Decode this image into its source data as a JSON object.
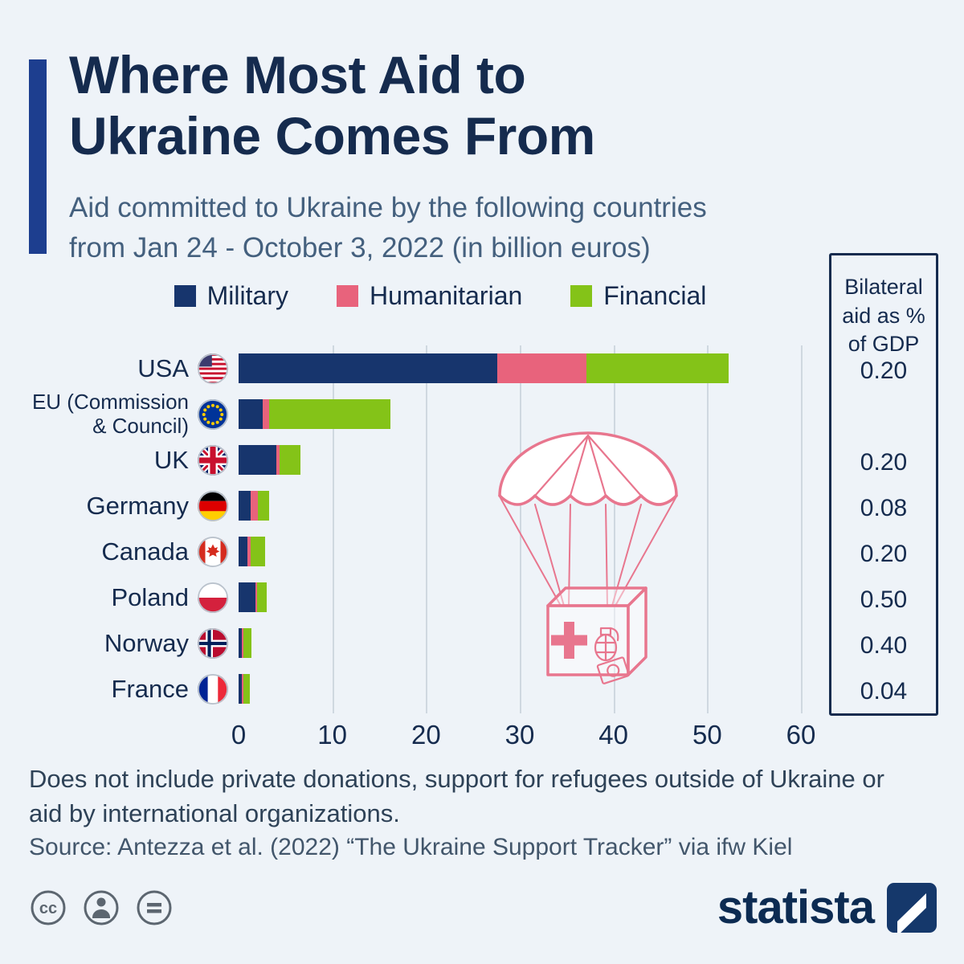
{
  "header": {
    "title": "Where Most Aid to\nUkraine Comes From",
    "subtitle": "Aid committed to Ukraine by the following countries\nfrom Jan 24 - October 3, 2022 (in billion euros)"
  },
  "legend": [
    {
      "label": "Military",
      "color": "#17356d"
    },
    {
      "label": "Humanitarian",
      "color": "#e8637c"
    },
    {
      "label": "Financial",
      "color": "#84c318"
    }
  ],
  "gdp_panel": {
    "title": "Bilateral aid as % of GDP"
  },
  "chart_data": {
    "type": "bar",
    "orientation": "horizontal",
    "stacked": true,
    "unit": "billion euros",
    "xlim": [
      0,
      60
    ],
    "x_ticks": [
      0,
      10,
      20,
      30,
      40,
      50,
      60
    ],
    "series_names": [
      "Military",
      "Humanitarian",
      "Financial"
    ],
    "rows": [
      {
        "country": "USA",
        "flag": "usa",
        "military": 27.6,
        "humanitarian": 9.5,
        "financial": 15.2,
        "gdp_pct": "0.20"
      },
      {
        "country": "EU (Commission & Council)",
        "label_lines": [
          "EU (Commission",
          "& Council)"
        ],
        "flag": "eu",
        "military": 2.6,
        "humanitarian": 0.7,
        "financial": 12.9,
        "gdp_pct": ""
      },
      {
        "country": "UK",
        "flag": "uk",
        "military": 4.0,
        "humanitarian": 0.4,
        "financial": 2.2,
        "gdp_pct": "0.20"
      },
      {
        "country": "Germany",
        "flag": "germany",
        "military": 1.3,
        "humanitarian": 0.8,
        "financial": 1.2,
        "gdp_pct": "0.08"
      },
      {
        "country": "Canada",
        "flag": "canada",
        "military": 0.9,
        "humanitarian": 0.4,
        "financial": 1.5,
        "gdp_pct": "0.20"
      },
      {
        "country": "Poland",
        "flag": "poland",
        "military": 1.8,
        "humanitarian": 0.2,
        "financial": 1.0,
        "gdp_pct": "0.50"
      },
      {
        "country": "Norway",
        "flag": "norway",
        "military": 0.3,
        "humanitarian": 0.2,
        "financial": 0.9,
        "gdp_pct": "0.40"
      },
      {
        "country": "France",
        "flag": "france",
        "military": 0.3,
        "humanitarian": 0.2,
        "financial": 0.7,
        "gdp_pct": "0.04"
      }
    ]
  },
  "footer": {
    "note": "Does not include private donations, support for refugees outside of Ukraine or\naid by international organizations.",
    "source": "Source: Antezza et al. (2022) “The Ukraine Support Tracker” via ifw Kiel",
    "brand": "statista"
  },
  "colors": {
    "background": "#eef3f8",
    "title": "#152b4e",
    "subtitle": "#44607e",
    "accent_bar": "#1d3e8f",
    "grid": "#cfd8e0",
    "illustration_pink": "#e8768e"
  }
}
